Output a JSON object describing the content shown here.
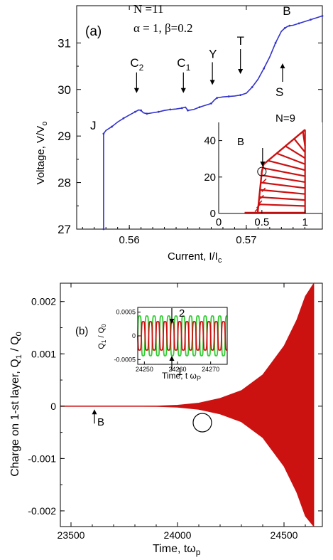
{
  "chart_data": [
    {
      "panel": "a",
      "type": "line",
      "panel_label": "(a)",
      "params_line1": "N =11",
      "params_line2": "α = 1,  β=0.2",
      "xlabel": "Current, I/I",
      "xlabel_sub": "c",
      "ylabel": "Voltage, V/V",
      "ylabel_sub": "o",
      "xlim": [
        0.5555,
        0.5765
      ],
      "ylim": [
        27,
        31.8
      ],
      "xticks": [
        "0.56",
        "0.57"
      ],
      "yticks": [
        "27",
        "28",
        "29",
        "30",
        "31"
      ],
      "grid": false,
      "series": [
        {
          "color": "#3333cc",
          "x": [
            0.5578,
            0.5578,
            0.5578,
            0.558,
            0.5585,
            0.559,
            0.5595,
            0.56,
            0.5605,
            0.5608,
            0.561,
            0.5612,
            0.5615,
            0.562,
            0.5625,
            0.563,
            0.5635,
            0.564,
            0.5645,
            0.5648,
            0.565,
            0.5655,
            0.566,
            0.5665,
            0.567,
            0.5673,
            0.5675,
            0.568,
            0.5685,
            0.569,
            0.5695,
            0.57,
            0.5705,
            0.571,
            0.5715,
            0.572,
            0.5725,
            0.573,
            0.5733,
            0.5735,
            0.5737,
            0.574,
            0.5745,
            0.575,
            0.5755,
            0.576,
            0.5765
          ],
          "y": [
            27.0,
            28.0,
            29.05,
            29.12,
            29.2,
            29.3,
            29.38,
            29.45,
            29.52,
            29.56,
            29.55,
            29.5,
            29.48,
            29.5,
            29.52,
            29.55,
            29.57,
            29.58,
            29.6,
            29.62,
            29.55,
            29.57,
            29.62,
            29.66,
            29.7,
            29.78,
            29.82,
            29.84,
            29.85,
            29.86,
            29.88,
            29.92,
            30.05,
            30.22,
            30.45,
            30.7,
            31.0,
            31.25,
            31.32,
            31.35,
            31.37,
            31.38,
            31.42,
            31.46,
            31.5,
            31.54,
            31.58
          ]
        }
      ],
      "annotations": [
        {
          "text": "J",
          "x": 0.5575,
          "y": 29.2
        },
        {
          "text": "C",
          "sub": "2",
          "x": 0.5605,
          "y": 30.0
        },
        {
          "text": "C",
          "sub": "1",
          "x": 0.5645,
          "y": 30.0
        },
        {
          "text": "Y",
          "x": 0.5671,
          "y": 30.25
        },
        {
          "text": "T",
          "x": 0.5695,
          "y": 30.5
        },
        {
          "text": "S",
          "x": 0.5731,
          "y": 29.95
        },
        {
          "text": "B",
          "x": 0.5733,
          "y": 31.65
        }
      ],
      "inset": {
        "type": "line",
        "title": "N=9",
        "marker_label": "B",
        "xlim": [
          0,
          1.2
        ],
        "ylim": [
          0,
          50
        ],
        "xticks": [
          "0",
          "0.5",
          "1"
        ],
        "yticks": [
          "0",
          "20",
          "40"
        ],
        "color": "#cc1111",
        "envelope": {
          "x": [
            0.45,
            0.5,
            0.52,
            1.0
          ],
          "y": [
            0,
            23,
            27,
            46
          ]
        },
        "return_branches_voltage": [
          5,
          9,
          13,
          17,
          21,
          25,
          29,
          33,
          37,
          41,
          45
        ],
        "steps_current": [
          0.42,
          0.44,
          0.46,
          0.48,
          0.5,
          0.51
        ],
        "steps_voltage": [
          1,
          3,
          5,
          8,
          12,
          17
        ]
      }
    },
    {
      "panel": "b",
      "type": "area",
      "panel_label": "(b)",
      "xlabel": "Time,  tω",
      "xlabel_sub": "p",
      "ylabel": "Charge on 1-st  layer, Q",
      "ylabel_sub1": "1",
      "ylabel_mid": " / Q",
      "ylabel_sub2": "0",
      "xlim": [
        23450,
        24680
      ],
      "ylim": [
        -0.0023,
        0.00235
      ],
      "xticks": [
        "23500",
        "24000",
        "24500"
      ],
      "yticks": [
        "-0.002",
        "-0.001",
        "0",
        "0.001",
        "0.002"
      ],
      "color": "#cc1111",
      "envelope": {
        "t": [
          23450,
          23700,
          23900,
          24000,
          24100,
          24200,
          24300,
          24400,
          24500,
          24560,
          24600,
          24640
        ],
        "amplitude": [
          0.0,
          0.0,
          5e-06,
          2e-05,
          6e-05,
          0.00015,
          0.0003,
          0.0006,
          0.00115,
          0.00165,
          0.0021,
          0.0026
        ]
      },
      "annotations": [
        {
          "text": "B",
          "x": 23610,
          "y": -0.00025
        }
      ],
      "inset": {
        "type": "line",
        "xlabel": "Time, t ω",
        "xlabel_sub": "P",
        "ylabel": "Q",
        "ylabel_sub1": "1",
        "ylabel_mid": " / Q",
        "ylabel_sub2": "0",
        "xlim": [
          24248,
          24275
        ],
        "ylim": [
          -0.0006,
          0.0006
        ],
        "xticks": [
          "24250",
          "24260",
          "24270"
        ],
        "yticks": [
          "0.0005",
          "0",
          "-0.0005"
        ],
        "label_top": "2",
        "label_bottom": "1",
        "series": [
          {
            "name": "1",
            "color": "#cc1111"
          },
          {
            "name": "2",
            "color": "#33cc33"
          }
        ],
        "oscillation_period": 2.2,
        "green_amplitude": 0.00042,
        "red_amplitude": 0.0003
      }
    }
  ]
}
